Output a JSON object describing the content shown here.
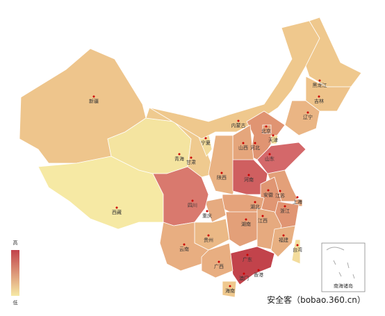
{
  "map": {
    "regions": [
      {
        "name": "新疆",
        "color": "#eec58c"
      },
      {
        "name": "西藏",
        "color": "#f6e9a4"
      },
      {
        "name": "青海",
        "color": "#f4e4a0"
      },
      {
        "name": "甘肃",
        "color": "#efca8f"
      },
      {
        "name": "宁夏",
        "color": "#f3dc9c"
      },
      {
        "name": "内蒙古",
        "color": "#efc88d"
      },
      {
        "name": "黑龙江",
        "color": "#efc88d"
      },
      {
        "name": "吉林",
        "color": "#eec38a"
      },
      {
        "name": "辽宁",
        "color": "#eab584"
      },
      {
        "name": "河北",
        "color": "#e09472"
      },
      {
        "name": "北京",
        "color": "#e3a07a"
      },
      {
        "name": "天津",
        "color": "#f3dd9c"
      },
      {
        "name": "山西",
        "color": "#e5a67c"
      },
      {
        "name": "陕西",
        "color": "#e9b283"
      },
      {
        "name": "山东",
        "color": "#d4686a"
      },
      {
        "name": "河南",
        "color": "#cf5f60"
      },
      {
        "name": "江苏",
        "color": "#e3a079"
      },
      {
        "name": "安徽",
        "color": "#e09673"
      },
      {
        "name": "上海",
        "color": "#e5a67c"
      },
      {
        "name": "浙江",
        "color": "#e09573"
      },
      {
        "name": "湖北",
        "color": "#e5a37b"
      },
      {
        "name": "重庆",
        "color": "#e6ab80"
      },
      {
        "name": "四川",
        "color": "#d9796e"
      },
      {
        "name": "贵州",
        "color": "#ebb986"
      },
      {
        "name": "云南",
        "color": "#e8ae81"
      },
      {
        "name": "湖南",
        "color": "#e3a079"
      },
      {
        "name": "江西",
        "color": "#e6aa7f"
      },
      {
        "name": "福建",
        "color": "#e8b082"
      },
      {
        "name": "台湾",
        "color": "#f3dc9c"
      },
      {
        "name": "广东",
        "color": "#c2434b"
      },
      {
        "name": "广西",
        "color": "#e8ae81"
      },
      {
        "name": "海南",
        "color": "#efc88d"
      },
      {
        "name": "香港",
        "color": "#e9b283"
      },
      {
        "name": "澳门",
        "color": "#f3dc9c"
      }
    ],
    "legend": {
      "high": "高",
      "low": "低",
      "colors": [
        "#c2434b",
        "#f6e9a4"
      ]
    },
    "inset_label": "南海诸岛",
    "watermark": "安全客（bobao.360.cn）"
  }
}
